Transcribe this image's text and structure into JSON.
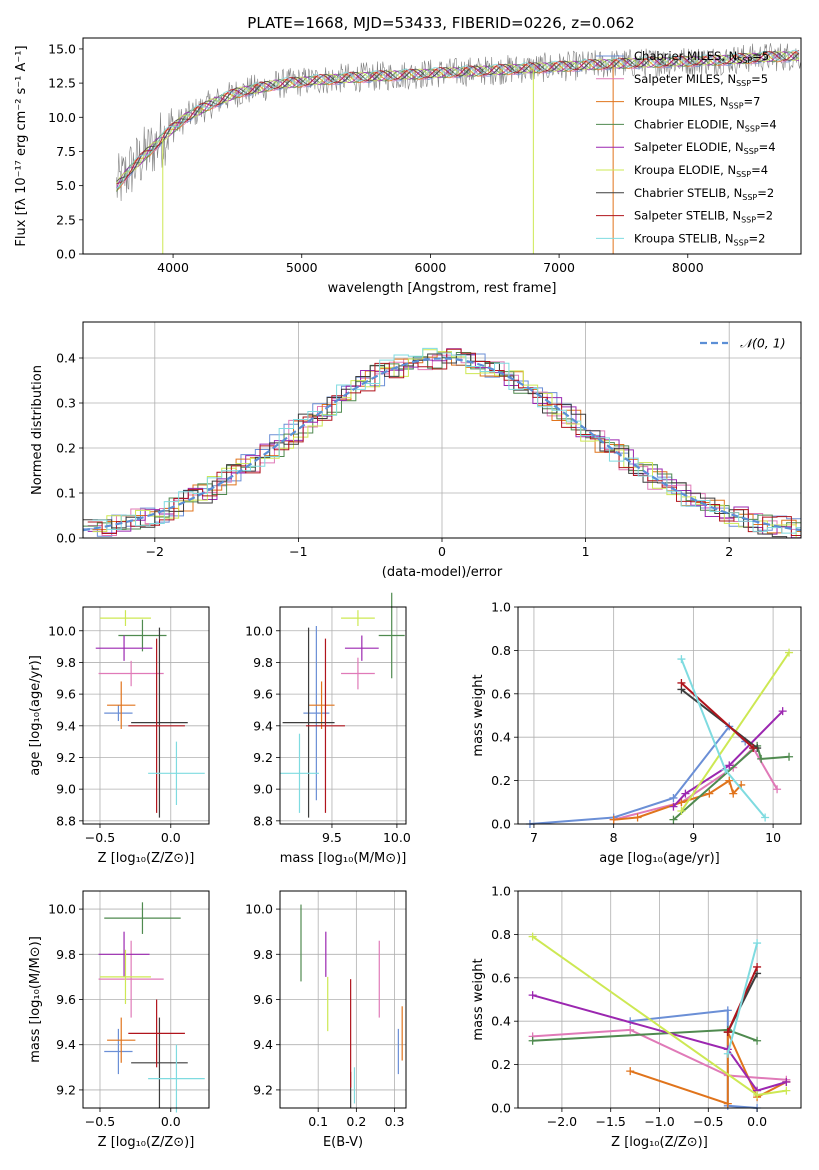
{
  "figure": {
    "title": "PLATE=1668, MJD=53433, FIBERID=0226, z=0.062"
  },
  "colors": {
    "Chabrier MILES": "#6b8fd6",
    "Salpeter MILES": "#e07ab8",
    "Kroupa MILES": "#e0741c",
    "Chabrier ELODIE": "#4f8a4f",
    "Salpeter ELODIE": "#9b27b0",
    "Kroupa ELODIE": "#cde853",
    "Chabrier STELIB": "#3d3d3d",
    "Salpeter STELIB": "#b0141c",
    "Kroupa STELIB": "#7fdbe0",
    "spectrum": "#808080",
    "gauss": "#5b8fd6"
  },
  "chart_data": [
    {
      "id": "spectrum",
      "type": "line",
      "title": "PLATE=1668, MJD=53433, FIBERID=0226, z=0.062",
      "xlabel": "wavelength [Angstrom, rest frame]",
      "ylabel": "Flux [fλ 10⁻¹⁷ erg cm⁻² s⁻¹ A⁻¹]",
      "xlim": [
        3300,
        8880
      ],
      "ylim": [
        0,
        15.8
      ],
      "xticks": [
        4000,
        5000,
        6000,
        7000,
        8000
      ],
      "yticks": [
        0.0,
        2.5,
        5.0,
        7.5,
        10.0,
        12.5,
        15.0
      ],
      "yticklabels": [
        "0.0",
        "2.5",
        "5.0",
        "7.5",
        "10.0",
        "12.5",
        "15.0"
      ],
      "grid": false,
      "legend_position": "right",
      "legend": [
        {
          "name": "Chabrier MILES, N",
          "sub": "SSP",
          "suffix": "=5"
        },
        {
          "name": "Salpeter MILES, N",
          "sub": "SSP",
          "suffix": "=5"
        },
        {
          "name": "Kroupa MILES, N",
          "sub": "SSP",
          "suffix": "=7"
        },
        {
          "name": "Chabrier ELODIE, N",
          "sub": "SSP",
          "suffix": "=4"
        },
        {
          "name": "Salpeter ELODIE, N",
          "sub": "SSP",
          "suffix": "=4"
        },
        {
          "name": "Kroupa ELODIE, N",
          "sub": "SSP",
          "suffix": "=4"
        },
        {
          "name": "Chabrier STELIB, N",
          "sub": "SSP",
          "suffix": "=2"
        },
        {
          "name": "Salpeter STELIB, N",
          "sub": "SSP",
          "suffix": "=2"
        },
        {
          "name": "Kroupa STELIB, N",
          "sub": "SSP",
          "suffix": "=2"
        }
      ],
      "continuum": {
        "x": [
          3550,
          3650,
          3800,
          3950,
          4100,
          4300,
          4500,
          4800,
          5100,
          5400,
          5800,
          6200,
          6600,
          7000,
          7400,
          7700,
          8000,
          8300,
          8600,
          8880
        ],
        "y": [
          4.8,
          6.0,
          7.4,
          8.8,
          10.0,
          11.0,
          11.8,
          12.4,
          12.7,
          12.9,
          13.1,
          13.3,
          13.5,
          13.7,
          13.9,
          14.0,
          14.1,
          14.2,
          14.4,
          14.5
        ]
      },
      "spikes": [
        {
          "x": 7420,
          "y": 0.0
        },
        {
          "x": 6800,
          "y": 0.0
        },
        {
          "x": 3920,
          "y": 0.0
        }
      ]
    },
    {
      "id": "residuals",
      "type": "bar",
      "xlabel": "(data-model)/error",
      "ylabel": "Normed distribution",
      "xlim": [
        -2.5,
        2.5
      ],
      "ylim": [
        0,
        0.48
      ],
      "xticks": [
        -2,
        -1,
        0,
        1,
        2
      ],
      "xticklabels": [
        "−2",
        "−1",
        "0",
        "1",
        "2"
      ],
      "yticks": [
        0.0,
        0.1,
        0.2,
        0.3,
        0.4
      ],
      "yticklabels": [
        "0.0",
        "0.1",
        "0.2",
        "0.3",
        "0.4"
      ],
      "grid": true,
      "legend_position": "top-right",
      "gauss_label": "𝒩(0, 1)",
      "bin_width": 0.1
    },
    {
      "id": "age-vs-z",
      "type": "scatter",
      "xlabel": "Z [log₁₀(Z/Z⊙)]",
      "ylabel": "age [log₁₀(age/yr)]",
      "xlim": [
        -0.62,
        0.27
      ],
      "ylim": [
        8.78,
        10.15
      ],
      "xticks": [
        -0.5,
        0.0
      ],
      "xticklabels": [
        "−0.5",
        "0.0"
      ],
      "yticks": [
        8.8,
        9.0,
        9.2,
        9.4,
        9.6,
        9.8,
        10.0
      ],
      "yticklabels": [
        "8.8",
        "9.0",
        "9.2",
        "9.4",
        "9.6",
        "9.8",
        "10.0"
      ],
      "grid": true,
      "points": [
        {
          "series": "Chabrier MILES",
          "x": -0.37,
          "y": 9.48,
          "dx": 0.1,
          "dy": 0.05
        },
        {
          "series": "Salpeter MILES",
          "x": -0.28,
          "y": 9.73,
          "dx": 0.23,
          "dy": 0.08
        },
        {
          "series": "Kroupa MILES",
          "x": -0.35,
          "y": 9.53,
          "dx": 0.1,
          "dy": 0.15
        },
        {
          "series": "Chabrier ELODIE",
          "x": -0.2,
          "y": 9.97,
          "dx": 0.17,
          "dy": 0.1
        },
        {
          "series": "Salpeter ELODIE",
          "x": -0.33,
          "y": 9.89,
          "dx": 0.2,
          "dy": 0.08
        },
        {
          "series": "Kroupa ELODIE",
          "x": -0.32,
          "y": 10.08,
          "dx": 0.18,
          "dy": 0.05
        },
        {
          "series": "Chabrier STELIB",
          "x": -0.08,
          "y": 9.42,
          "dx": 0.2,
          "dy": 0.6
        },
        {
          "series": "Salpeter STELIB",
          "x": -0.1,
          "y": 9.4,
          "dx": 0.2,
          "dy": 0.55
        },
        {
          "series": "Kroupa STELIB",
          "x": 0.04,
          "y": 9.1,
          "dx": 0.2,
          "dy": 0.2
        }
      ]
    },
    {
      "id": "age-vs-mass",
      "type": "scatter",
      "xlabel": "mass [log₁₀(M/M⊙)]",
      "xlim": [
        9.1,
        10.07
      ],
      "ylim": [
        8.78,
        10.15
      ],
      "xticks": [
        9.5,
        10.0
      ],
      "xticklabels": [
        "9.5",
        "10.0"
      ],
      "yticks": [
        8.8,
        9.0,
        9.2,
        9.4,
        9.6,
        9.8,
        10.0
      ],
      "yticklabels": [
        "8.8",
        "9.0",
        "9.2",
        "9.4",
        "9.6",
        "9.8",
        "10.0"
      ],
      "grid": true,
      "points": [
        {
          "series": "Chabrier MILES",
          "x": 9.38,
          "y": 9.48,
          "dx": 0.1,
          "dy": 0.55
        },
        {
          "series": "Salpeter MILES",
          "x": 9.7,
          "y": 9.73,
          "dx": 0.13,
          "dy": 0.1
        },
        {
          "series": "Kroupa MILES",
          "x": 9.42,
          "y": 9.53,
          "dx": 0.1,
          "dy": 0.15
        },
        {
          "series": "Chabrier ELODIE",
          "x": 9.96,
          "y": 9.97,
          "dx": 0.1,
          "dy": 0.27
        },
        {
          "series": "Salpeter ELODIE",
          "x": 9.73,
          "y": 9.89,
          "dx": 0.13,
          "dy": 0.08
        },
        {
          "series": "Kroupa ELODIE",
          "x": 9.7,
          "y": 10.08,
          "dx": 0.13,
          "dy": 0.05
        },
        {
          "series": "Chabrier STELIB",
          "x": 9.32,
          "y": 9.42,
          "dx": 0.2,
          "dy": 0.6
        },
        {
          "series": "Salpeter STELIB",
          "x": 9.45,
          "y": 9.4,
          "dx": 0.15,
          "dy": 0.55
        },
        {
          "series": "Kroupa STELIB",
          "x": 9.25,
          "y": 9.1,
          "dx": 0.15,
          "dy": 0.25
        }
      ]
    },
    {
      "id": "weight-vs-age",
      "type": "line",
      "xlabel": "age  [log₁₀(age/yr)]",
      "ylabel": "mass weight",
      "xlim": [
        6.8,
        10.35
      ],
      "ylim": [
        0,
        1.0
      ],
      "xticks": [
        7,
        8,
        9,
        10
      ],
      "xticklabels": [
        "7",
        "8",
        "9",
        "10"
      ],
      "yticks": [
        0.0,
        0.2,
        0.4,
        0.6,
        0.8,
        1.0
      ],
      "yticklabels": [
        "0.0",
        "0.2",
        "0.4",
        "0.6",
        "0.8",
        "1.0"
      ],
      "grid": true,
      "series": [
        {
          "name": "Chabrier MILES",
          "x": [
            6.95,
            8.0,
            8.75,
            9.45,
            9.65
          ],
          "y": [
            0.0,
            0.03,
            0.12,
            0.45,
            0.38
          ]
        },
        {
          "name": "Salpeter MILES",
          "x": [
            8.0,
            8.85,
            9.5,
            9.75,
            10.05
          ],
          "y": [
            0.02,
            0.1,
            0.26,
            0.35,
            0.16
          ]
        },
        {
          "name": "Kroupa MILES",
          "x": [
            8.0,
            8.3,
            8.85,
            9.2,
            9.45,
            9.5,
            9.6
          ],
          "y": [
            0.02,
            0.03,
            0.1,
            0.14,
            0.2,
            0.14,
            0.18
          ]
        },
        {
          "name": "Chabrier ELODIE",
          "x": [
            8.75,
            9.8,
            9.85,
            10.2
          ],
          "y": [
            0.02,
            0.36,
            0.3,
            0.31
          ]
        },
        {
          "name": "Salpeter ELODIE",
          "x": [
            8.75,
            8.9,
            9.45,
            10.12
          ],
          "y": [
            0.08,
            0.14,
            0.27,
            0.52
          ]
        },
        {
          "name": "Kroupa ELODIE",
          "x": [
            8.85,
            10.2
          ],
          "y": [
            0.06,
            0.79
          ]
        },
        {
          "name": "Chabrier STELIB",
          "x": [
            8.85,
            9.8
          ],
          "y": [
            0.62,
            0.35
          ]
        },
        {
          "name": "Salpeter STELIB",
          "x": [
            8.85,
            9.75
          ],
          "y": [
            0.65,
            0.35
          ]
        },
        {
          "name": "Kroupa STELIB",
          "x": [
            8.85,
            9.4,
            9.9
          ],
          "y": [
            0.76,
            0.25,
            0.03
          ]
        }
      ]
    },
    {
      "id": "mass-vs-z",
      "type": "scatter",
      "xlabel": "Z [log₁₀(Z/Z⊙)]",
      "ylabel": "mass [log₁₀(M/M⊙)]",
      "xlim": [
        -0.62,
        0.27
      ],
      "ylim": [
        9.12,
        10.08
      ],
      "xticks": [
        -0.5,
        0.0
      ],
      "xticklabels": [
        "−0.5",
        "0.0"
      ],
      "yticks": [
        9.2,
        9.4,
        9.6,
        9.8,
        10.0
      ],
      "yticklabels": [
        "9.2",
        "9.4",
        "9.6",
        "9.8",
        "10.0"
      ],
      "grid": true,
      "points": [
        {
          "series": "Chabrier MILES",
          "x": -0.37,
          "y": 9.37,
          "dx": 0.1,
          "dy": 0.1
        },
        {
          "series": "Salpeter MILES",
          "x": -0.28,
          "y": 9.69,
          "dx": 0.23,
          "dy": 0.17
        },
        {
          "series": "Kroupa MILES",
          "x": -0.35,
          "y": 9.42,
          "dx": 0.1,
          "dy": 0.1
        },
        {
          "series": "Chabrier ELODIE",
          "x": -0.2,
          "y": 9.96,
          "dx": 0.27,
          "dy": 0.07
        },
        {
          "series": "Salpeter ELODIE",
          "x": -0.33,
          "y": 9.8,
          "dx": 0.18,
          "dy": 0.1
        },
        {
          "series": "Kroupa ELODIE",
          "x": -0.32,
          "y": 9.7,
          "dx": 0.18,
          "dy": 0.12
        },
        {
          "series": "Chabrier STELIB",
          "x": -0.08,
          "y": 9.32,
          "dx": 0.2,
          "dy": 0.2
        },
        {
          "series": "Salpeter STELIB",
          "x": -0.1,
          "y": 9.45,
          "dx": 0.2,
          "dy": 0.15
        },
        {
          "series": "Kroupa STELIB",
          "x": 0.04,
          "y": 9.25,
          "dx": 0.2,
          "dy": 0.15
        }
      ]
    },
    {
      "id": "mass-vs-ebv",
      "type": "scatter",
      "xlabel": "E(B-V)",
      "xlim": [
        0.0,
        0.33
      ],
      "ylim": [
        9.12,
        10.08
      ],
      "xticks": [
        0.1,
        0.2,
        0.3
      ],
      "xticklabels": [
        "0.1",
        "0.2",
        "0.3"
      ],
      "yticks": [
        9.2,
        9.4,
        9.6,
        9.8,
        10.0
      ],
      "yticklabels": [
        "9.2",
        "9.4",
        "9.6",
        "9.8",
        "10.0"
      ],
      "grid": true,
      "points": [
        {
          "series": "Chabrier MILES",
          "x": 0.31,
          "y": 9.37,
          "dx": 0.0,
          "dy": 0.1
        },
        {
          "series": "Salpeter MILES",
          "x": 0.26,
          "y": 9.69,
          "dx": 0.0,
          "dy": 0.17
        },
        {
          "series": "Kroupa MILES",
          "x": 0.32,
          "y": 9.45,
          "dx": 0.0,
          "dy": 0.12
        },
        {
          "series": "Chabrier ELODIE",
          "x": 0.055,
          "y": 9.85,
          "dx": 0.0,
          "dy": 0.17
        },
        {
          "series": "Salpeter ELODIE",
          "x": 0.12,
          "y": 9.8,
          "dx": 0.0,
          "dy": 0.1
        },
        {
          "series": "Kroupa ELODIE",
          "x": 0.125,
          "y": 9.58,
          "dx": 0.0,
          "dy": 0.12
        },
        {
          "series": "Chabrier STELIB",
          "x": 0.185,
          "y": 9.2,
          "dx": 0.0,
          "dy": 0.08
        },
        {
          "series": "Salpeter STELIB",
          "x": 0.185,
          "y": 9.45,
          "dx": 0.0,
          "dy": 0.24
        },
        {
          "series": "Kroupa STELIB",
          "x": 0.195,
          "y": 9.22,
          "dx": 0.0,
          "dy": 0.08
        }
      ]
    },
    {
      "id": "weight-vs-z",
      "type": "line",
      "xlabel": "Z [log₁₀(Z/Z⊙)]",
      "ylabel": "mass weight",
      "xlim": [
        -2.45,
        0.45
      ],
      "ylim": [
        0,
        1.0
      ],
      "xticks": [
        -2.0,
        -1.5,
        -1.0,
        -0.5,
        0.0
      ],
      "xticklabels": [
        "−2.0",
        "−1.5",
        "−1.0",
        "−0.5",
        "0.0"
      ],
      "yticks": [
        0.0,
        0.2,
        0.4,
        0.6,
        0.8,
        1.0
      ],
      "yticklabels": [
        "0.0",
        "0.2",
        "0.4",
        "0.6",
        "0.8",
        "1.0"
      ],
      "grid": true,
      "series": [
        {
          "name": "Chabrier MILES",
          "x": [
            -1.3,
            -0.3,
            -0.3,
            0.0
          ],
          "y": [
            0.4,
            0.45,
            0.01,
            0.0
          ]
        },
        {
          "name": "Salpeter MILES",
          "x": [
            -2.3,
            -1.3,
            -0.3,
            0.3
          ],
          "y": [
            0.33,
            0.36,
            0.15,
            0.13
          ]
        },
        {
          "name": "Kroupa MILES",
          "x": [
            -1.3,
            -0.3,
            -0.3,
            0.0,
            0.3
          ],
          "y": [
            0.17,
            0.02,
            0.35,
            0.05,
            0.12
          ]
        },
        {
          "name": "Chabrier ELODIE",
          "x": [
            -2.3,
            -0.3,
            0.0
          ],
          "y": [
            0.31,
            0.36,
            0.31
          ]
        },
        {
          "name": "Salpeter ELODIE",
          "x": [
            -2.3,
            -0.3,
            0.0,
            0.3
          ],
          "y": [
            0.52,
            0.27,
            0.08,
            0.12
          ]
        },
        {
          "name": "Kroupa ELODIE",
          "x": [
            -2.3,
            0.0,
            0.3
          ],
          "y": [
            0.79,
            0.06,
            0.08
          ]
        },
        {
          "name": "Chabrier STELIB",
          "x": [
            -0.3,
            0.0
          ],
          "y": [
            0.35,
            0.62
          ]
        },
        {
          "name": "Salpeter STELIB",
          "x": [
            -0.3,
            0.0
          ],
          "y": [
            0.35,
            0.65
          ]
        },
        {
          "name": "Kroupa STELIB",
          "x": [
            -0.3,
            0.0
          ],
          "y": [
            0.25,
            0.76
          ]
        }
      ]
    }
  ]
}
